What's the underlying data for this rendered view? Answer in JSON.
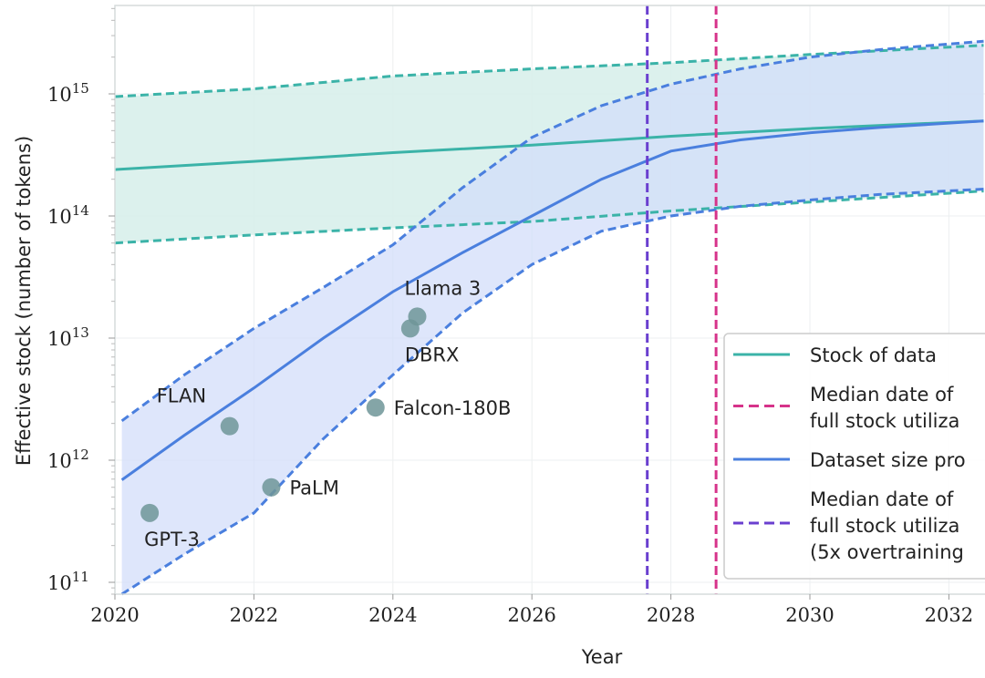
{
  "chart_data": {
    "type": "line",
    "xlabel": "Year",
    "ylabel": "Effective stock (number of tokens)",
    "xlim": [
      2020,
      2032.5
    ],
    "ylim_log10": [
      10.9,
      15.72
    ],
    "y_scale": "log",
    "grid": true,
    "x_ticks": [
      "2020",
      "2022",
      "2024",
      "2026",
      "2028",
      "2030",
      "2032"
    ],
    "y_ticks": [
      {
        "base": "10",
        "exp": "15",
        "log": 15
      },
      {
        "base": "10",
        "exp": "14",
        "log": 14
      },
      {
        "base": "10",
        "exp": "13",
        "log": 13
      },
      {
        "base": "10",
        "exp": "12",
        "log": 12
      },
      {
        "base": "10",
        "exp": "11",
        "log": 11
      }
    ],
    "series": [
      {
        "name": "Stock of data",
        "color": "#3bb3a8",
        "fill": "#d8efeb",
        "x": [
          2020,
          2022,
          2024,
          2026,
          2028,
          2030,
          2032.5
        ],
        "median": [
          240000000000000.0,
          280000000000000.0,
          330000000000000.0,
          380000000000000.0,
          450000000000000.0,
          520000000000000.0,
          600000000000000.0
        ],
        "upper": [
          950000000000000.0,
          1100000000000000.0,
          1400000000000000.0,
          1600000000000000.0,
          1800000000000000.0,
          2100000000000000.0,
          2500000000000000.0
        ],
        "lower": [
          60000000000000.0,
          70000000000000.0,
          80000000000000.0,
          90000000000000.0,
          110000000000000.0,
          130000000000000.0,
          160000000000000.0
        ]
      },
      {
        "name": "Dataset size pro",
        "color": "#4a7fde",
        "fill": "#d3defa",
        "x": [
          2020.1,
          2021,
          2022,
          2023,
          2024,
          2025,
          2026,
          2027,
          2028,
          2029,
          2030,
          2031,
          2032.5
        ],
        "median": [
          690000000000.0,
          1600000000000.0,
          3900000000000.0,
          10000000000000.0,
          24000000000000.0,
          50000000000000.0,
          100000000000000.0,
          200000000000000.0,
          340000000000000.0,
          420000000000000.0,
          480000000000000.0,
          530000000000000.0,
          600000000000000.0
        ],
        "upper": [
          2100000000000.0,
          5000000000000.0,
          12000000000000.0,
          26000000000000.0,
          58000000000000.0,
          170000000000000.0,
          440000000000000.0,
          800000000000000.0,
          1200000000000000.0,
          1600000000000000.0,
          2000000000000000.0,
          2300000000000000.0,
          2700000000000000.0
        ],
        "lower": [
          80000000000.0,
          170000000000.0,
          370000000000.0,
          1500000000000.0,
          5000000000000.0,
          16000000000000.0,
          40000000000000.0,
          75000000000000.0,
          100000000000000.0,
          120000000000000.0,
          135000000000000.0,
          150000000000000.0,
          166000000000000.0
        ]
      }
    ],
    "vlines": [
      {
        "name": "Median date of full stock utilization (5x overtraining)",
        "x": 2027.66,
        "color": "#6a3fcf"
      },
      {
        "name": "Median date of full stock utilization",
        "x": 2028.65,
        "color": "#d6338a"
      }
    ],
    "points": [
      {
        "label": "GPT-3",
        "x": 2020.5,
        "y": 370000000000.0,
        "pos": "below"
      },
      {
        "label": "FLAN",
        "x": 2021.65,
        "y": 1900000000000.0,
        "pos": "above-left"
      },
      {
        "label": "PaLM",
        "x": 2022.25,
        "y": 600000000000.0,
        "pos": "right"
      },
      {
        "label": "Falcon-180B",
        "x": 2023.75,
        "y": 2700000000000.0,
        "pos": "right"
      },
      {
        "label": "DBRX",
        "x": 2024.25,
        "y": 12000000000000.0,
        "pos": "below"
      },
      {
        "label": "Llama 3",
        "x": 2024.35,
        "y": 15000000000000.0,
        "pos": "above"
      }
    ],
    "point_color": "#6f9598",
    "legend": {
      "placement": "right",
      "entries": [
        {
          "lines": [
            "Stock of data"
          ],
          "style": "solid",
          "color": "#3bb3a8"
        },
        {
          "lines": [
            "Median date of",
            "full stock utiliza"
          ],
          "style": "dashed",
          "color": "#d6338a"
        },
        {
          "lines": [
            "Dataset size pro"
          ],
          "style": "solid",
          "color": "#4a7fde"
        },
        {
          "lines": [
            "Median date of",
            "full stock utiliza",
            "(5x overtraining"
          ],
          "style": "dashed",
          "color": "#6a3fcf"
        }
      ]
    }
  }
}
